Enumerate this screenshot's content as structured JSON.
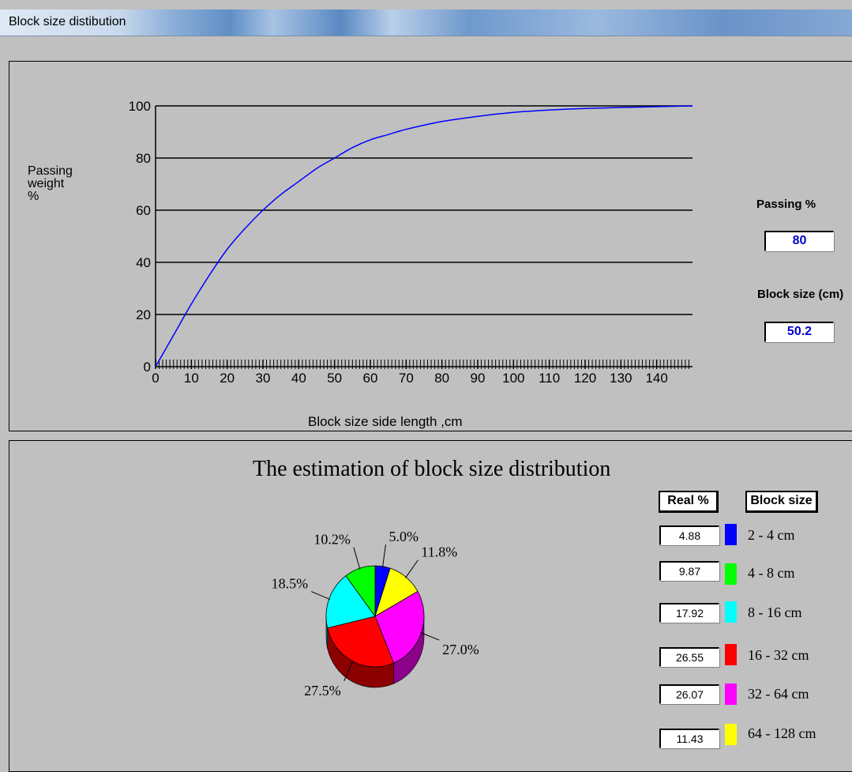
{
  "window": {
    "title": "Block size distibution"
  },
  "curve_chart": {
    "ylabel_lines": [
      "Passing",
      "weight",
      "%"
    ],
    "xlabel": "Block size side length  ,cm",
    "ytick_labels": [
      "0",
      "20",
      "40",
      "60",
      "80",
      "100"
    ],
    "xtick_labels": [
      "0",
      "10",
      "20",
      "30",
      "40",
      "50",
      "60",
      "70",
      "80",
      "90",
      "100",
      "110",
      "120",
      "130",
      "140"
    ]
  },
  "readouts": {
    "passing_label": "Passing  %",
    "passing_value": "80",
    "block_size_label": "Block size (cm)",
    "block_size_value": "50.2"
  },
  "pie_section": {
    "title": "The estimation of block size distribution",
    "real_header": "Real %",
    "size_header": "Block size",
    "rows": [
      {
        "real": "4.88",
        "range": "2 - 4 cm",
        "color": "#0000ff"
      },
      {
        "real": "9.87",
        "range": "4 - 8 cm",
        "color": "#00ff00"
      },
      {
        "real": "17.92",
        "range": "8 - 16 cm",
        "color": "#00ffff"
      },
      {
        "real": "26.55",
        "range": "16 - 32 cm",
        "color": "#ff0000"
      },
      {
        "real": "26.07",
        "range": "32 - 64 cm",
        "color": "#ff00ff"
      },
      {
        "real": "11.43",
        "range": "64 - 128 cm",
        "color": "#ffff00"
      }
    ]
  },
  "chart_data": [
    {
      "type": "line",
      "title": "",
      "xlabel": "Block size side length  ,cm",
      "ylabel": "Passing weight %",
      "xlim": [
        0,
        150
      ],
      "ylim": [
        0,
        100
      ],
      "grid": "horizontal",
      "series": [
        {
          "color": "#0000ff",
          "x": [
            0,
            5,
            10,
            15,
            20,
            25,
            30,
            35,
            40,
            45,
            50,
            55,
            60,
            65,
            70,
            80,
            90,
            100,
            110,
            120,
            130,
            140,
            150
          ],
          "y": [
            0,
            12,
            24,
            35,
            45,
            53,
            60,
            66,
            71,
            76,
            80,
            84,
            87,
            89,
            91,
            94,
            96,
            97.5,
            98.4,
            99,
            99.4,
            99.7,
            100
          ]
        }
      ]
    },
    {
      "type": "pie",
      "title": "The estimation of block size distribution",
      "slices": [
        {
          "label": "5.0%",
          "value": 5.0,
          "color": "#0000ff"
        },
        {
          "label": "11.8%",
          "value": 11.8,
          "color": "#ffff00"
        },
        {
          "label": "27.0%",
          "value": 27.0,
          "color": "#ff00ff"
        },
        {
          "label": "27.5%",
          "value": 27.5,
          "color": "#ff0000"
        },
        {
          "label": "18.5%",
          "value": 18.5,
          "color": "#00ffff"
        },
        {
          "label": "10.2%",
          "value": 10.2,
          "color": "#00ff00"
        }
      ]
    }
  ]
}
